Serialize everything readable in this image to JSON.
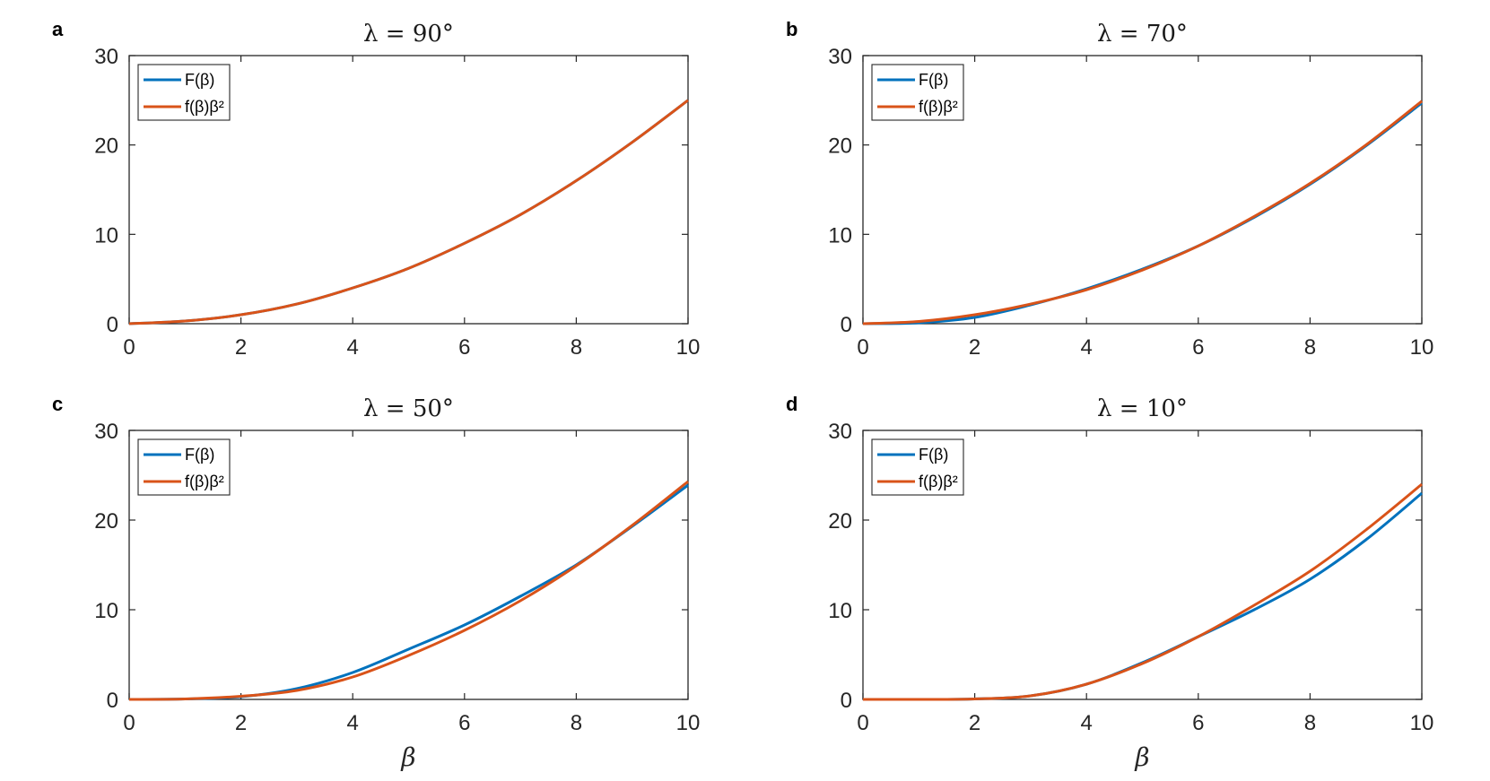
{
  "figure": {
    "legend_entries": [
      "F(β)",
      "f(β)β²"
    ],
    "xlabel": "β"
  },
  "colors": {
    "series_F": "#0072BD",
    "series_f": "#D95319"
  },
  "chart_data": [
    {
      "type": "line",
      "panel": "a",
      "title": "λ = 90°",
      "xlabel": "",
      "xlim": [
        0,
        10
      ],
      "ylim": [
        0,
        30
      ],
      "xticks": [
        0,
        2,
        4,
        6,
        8,
        10
      ],
      "yticks": [
        0,
        10,
        20,
        30
      ],
      "legend": "top-left",
      "x": [
        0,
        1,
        2,
        3,
        4,
        5,
        6,
        7,
        8,
        9,
        10
      ],
      "series": [
        {
          "name": "F(β)",
          "values": [
            0,
            0.3,
            1.0,
            2.2,
            4.0,
            6.2,
            9.0,
            12.2,
            16.0,
            20.3,
            25.0
          ]
        },
        {
          "name": "f(β)β²",
          "values": [
            0,
            0.3,
            1.0,
            2.2,
            4.0,
            6.2,
            9.0,
            12.2,
            16.0,
            20.3,
            25.0
          ]
        }
      ]
    },
    {
      "type": "line",
      "panel": "b",
      "title": "λ = 70°",
      "xlabel": "",
      "xlim": [
        0,
        10
      ],
      "ylim": [
        0,
        30
      ],
      "xticks": [
        0,
        2,
        4,
        6,
        8,
        10
      ],
      "yticks": [
        0,
        10,
        20,
        30
      ],
      "legend": "top-left",
      "x": [
        0,
        1,
        2,
        3,
        4,
        5,
        6,
        7,
        8,
        9,
        10
      ],
      "series": [
        {
          "name": "F(β)",
          "values": [
            0,
            0.1,
            0.7,
            2.1,
            3.9,
            6.1,
            8.7,
            11.9,
            15.6,
            19.9,
            24.7
          ]
        },
        {
          "name": "f(β)β²",
          "values": [
            0,
            0.25,
            1.0,
            2.2,
            3.8,
            6.0,
            8.7,
            12.0,
            15.7,
            20.0,
            24.9
          ]
        }
      ]
    },
    {
      "type": "line",
      "panel": "c",
      "title": "λ = 50°",
      "xlabel": "β",
      "xlim": [
        0,
        10
      ],
      "ylim": [
        0,
        30
      ],
      "xticks": [
        0,
        2,
        4,
        6,
        8,
        10
      ],
      "yticks": [
        0,
        10,
        20,
        30
      ],
      "legend": "top-left",
      "x": [
        0,
        1,
        2,
        3,
        4,
        5,
        6,
        7,
        8,
        9,
        10
      ],
      "series": [
        {
          "name": "F(β)",
          "values": [
            0,
            0.05,
            0.3,
            1.2,
            3.0,
            5.6,
            8.3,
            11.5,
            15.0,
            19.3,
            23.9
          ]
        },
        {
          "name": "f(β)β²",
          "values": [
            0,
            0.05,
            0.35,
            1.0,
            2.5,
            4.9,
            7.7,
            11.0,
            14.9,
            19.4,
            24.3
          ]
        }
      ]
    },
    {
      "type": "line",
      "panel": "d",
      "title": "λ = 10°",
      "xlabel": "β",
      "xlim": [
        0,
        10
      ],
      "ylim": [
        0,
        30
      ],
      "xticks": [
        0,
        2,
        4,
        6,
        8,
        10
      ],
      "yticks": [
        0,
        10,
        20,
        30
      ],
      "legend": "top-left",
      "x": [
        0,
        1,
        2,
        3,
        4,
        5,
        6,
        7,
        8,
        9,
        10
      ],
      "series": [
        {
          "name": "F(β)",
          "values": [
            0,
            0,
            0.05,
            0.4,
            1.7,
            4.1,
            7.0,
            10.0,
            13.4,
            17.8,
            23.0
          ]
        },
        {
          "name": "f(β)β²",
          "values": [
            0,
            0,
            0.05,
            0.4,
            1.7,
            4.0,
            7.0,
            10.5,
            14.3,
            18.9,
            24.0
          ]
        }
      ]
    }
  ]
}
